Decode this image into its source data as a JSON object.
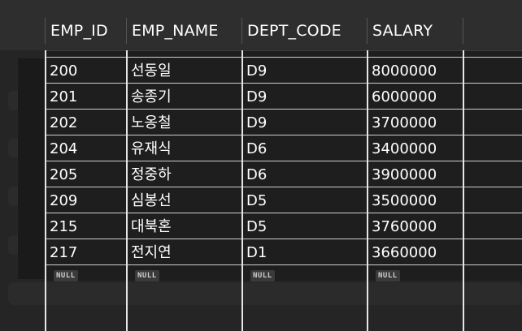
{
  "columns": [
    "EMP_ID",
    "EMP_NAME",
    "DEPT_CODE",
    "SALARY"
  ],
  "rows": [
    [
      "200",
      "선동일",
      "D9",
      "8000000"
    ],
    [
      "201",
      "송종기",
      "D9",
      "6000000"
    ],
    [
      "202",
      "노옹철",
      "D9",
      "3700000"
    ],
    [
      "204",
      "유재식",
      "D6",
      "3400000"
    ],
    [
      "205",
      "정중하",
      "D6",
      "3900000"
    ],
    [
      "209",
      "심봉선",
      "D5",
      "3500000"
    ],
    [
      "215",
      "대북혼",
      "D5",
      "3760000"
    ],
    [
      "217",
      "전지연",
      "D1",
      "3660000"
    ]
  ],
  "null_label": "NULL"
}
